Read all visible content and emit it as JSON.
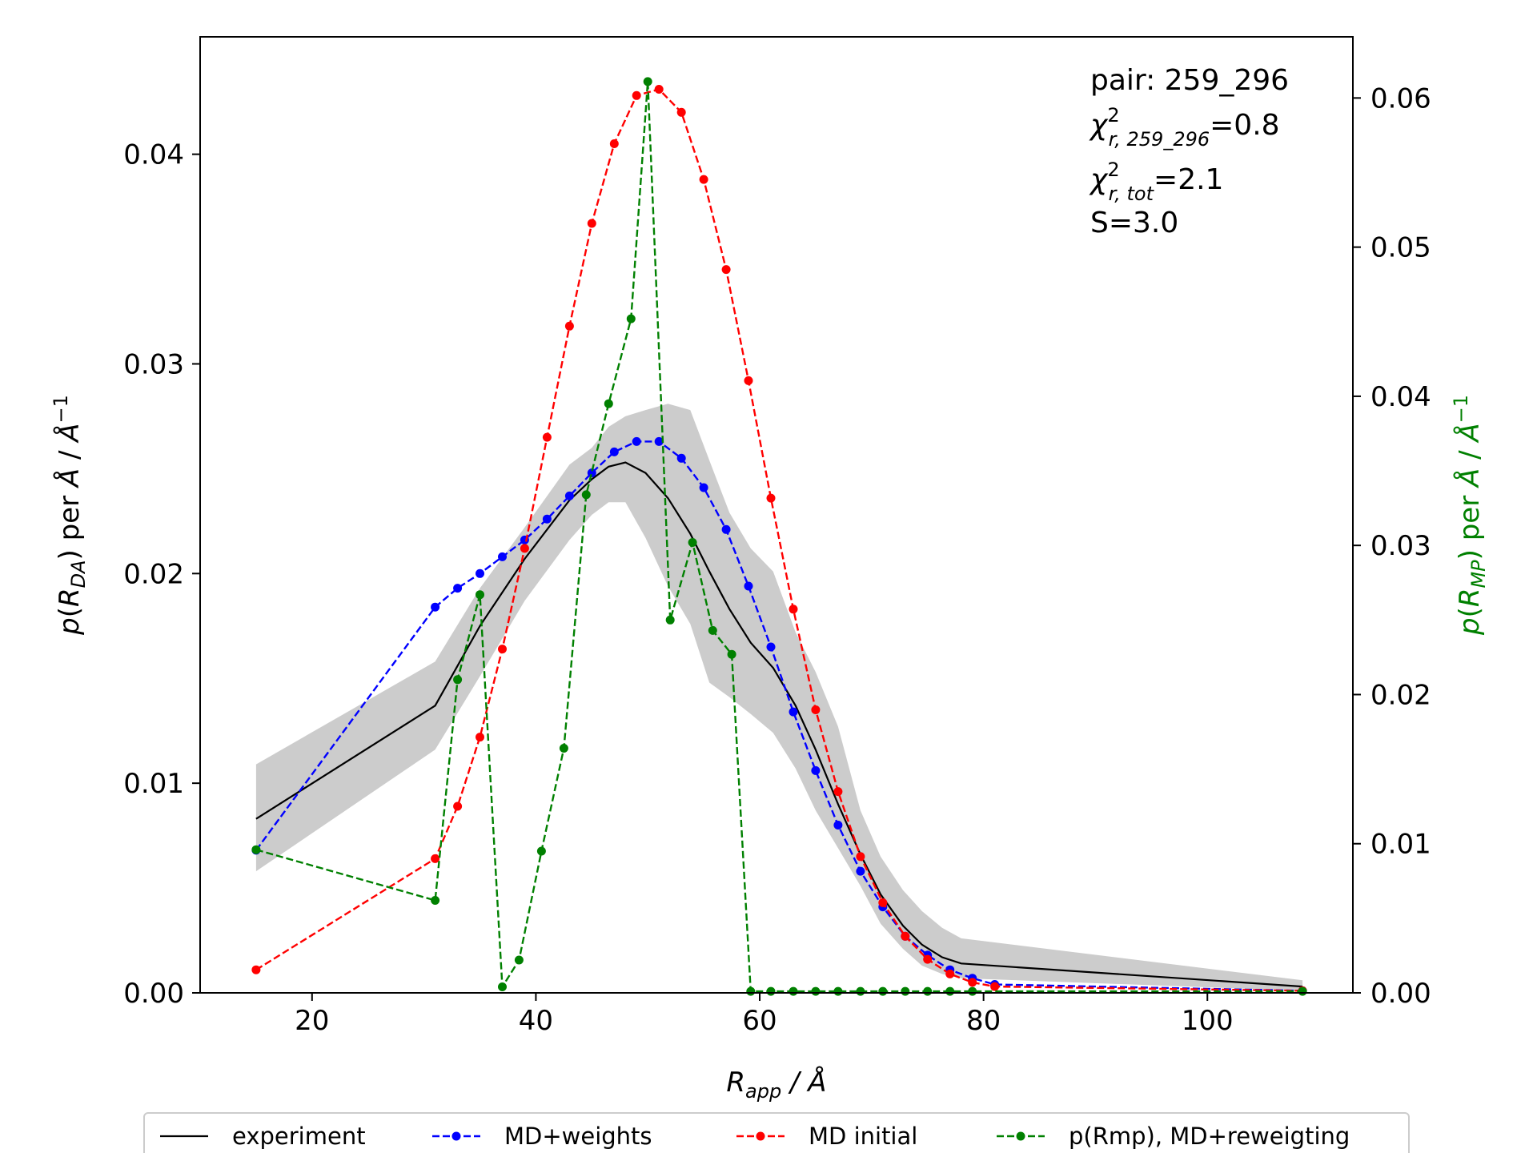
{
  "chart_data": {
    "type": "line",
    "title": "",
    "xlabel": "R_app / Å",
    "ylabel": "p(R_DA) per Å / Å⁻¹",
    "y2label": "p(R_MP) per Å / Å⁻¹",
    "y2label_color": "#008000",
    "xlim": [
      10,
      113
    ],
    "ylim": [
      0,
      0.0456
    ],
    "y2lim": [
      0,
      0.0641
    ],
    "xticks": [
      "20",
      "40",
      "60",
      "80",
      "100"
    ],
    "yticks": [
      "0.00",
      "0.01",
      "0.02",
      "0.03",
      "0.04"
    ],
    "y2ticks": [
      "0.00",
      "0.01",
      "0.02",
      "0.03",
      "0.04",
      "0.05",
      "0.06"
    ],
    "grid": false,
    "legend_position": "below-center",
    "annotation": {
      "pair": "pair: 259_296",
      "chi_pair": "=0.8",
      "chi_pair_sub": "r, 259_296",
      "chi_tot": "=2.1",
      "chi_tot_sub": "r, tot",
      "chi_symbol": "χ",
      "chi_sup": "2",
      "s": "S=3.0"
    },
    "series": [
      {
        "name": "experiment",
        "color": "#000000",
        "style": "solid",
        "axis": "left",
        "x": [
          15,
          31,
          35,
          39,
          43,
          45,
          46.5,
          48,
          49.8,
          51.8,
          53.8,
          55.5,
          57.3,
          59.2,
          61.2,
          63.2,
          65,
          67,
          69,
          70.8,
          72.8,
          74.5,
          76.3,
          78,
          108.5
        ],
        "y": [
          0.0083,
          0.0137,
          0.0175,
          0.0207,
          0.0235,
          0.0245,
          0.0251,
          0.0253,
          0.0248,
          0.0236,
          0.0219,
          0.0201,
          0.0183,
          0.0167,
          0.0155,
          0.0137,
          0.0116,
          0.009,
          0.0066,
          0.0047,
          0.0032,
          0.0023,
          0.0017,
          0.0014,
          0.0003
        ],
        "band_upper": [
          0.0109,
          0.0158,
          0.0193,
          0.0222,
          0.0252,
          0.026,
          0.027,
          0.0275,
          0.0278,
          0.0281,
          0.0278,
          0.0254,
          0.0229,
          0.0212,
          0.0201,
          0.0172,
          0.0153,
          0.0127,
          0.0087,
          0.0065,
          0.0049,
          0.0039,
          0.0031,
          0.0026,
          0.0006
        ],
        "band_lower": [
          0.0058,
          0.0116,
          0.0151,
          0.0187,
          0.0216,
          0.0228,
          0.0234,
          0.0234,
          0.0217,
          0.0194,
          0.0176,
          0.0148,
          0.0141,
          0.0133,
          0.0124,
          0.0107,
          0.0087,
          0.0069,
          0.0051,
          0.0033,
          0.0021,
          0.0013,
          0.0009,
          0.0007,
          0.0001
        ]
      },
      {
        "name": "MD+weights",
        "color": "#0000ff",
        "style": "dashed",
        "axis": "left",
        "x": [
          15,
          31,
          33,
          35,
          37,
          39,
          41,
          43,
          45,
          47,
          49,
          51,
          53,
          55,
          57,
          59,
          61,
          63,
          65,
          67,
          69,
          71,
          73,
          75,
          77,
          79,
          81,
          108.5
        ],
        "y": [
          0.0068,
          0.0184,
          0.0193,
          0.02,
          0.0208,
          0.0216,
          0.0226,
          0.0237,
          0.0248,
          0.0258,
          0.0263,
          0.0263,
          0.0255,
          0.0241,
          0.0221,
          0.0194,
          0.0165,
          0.0134,
          0.0106,
          0.008,
          0.0058,
          0.0041,
          0.0027,
          0.0018,
          0.0011,
          0.0007,
          0.0004,
          0.0001
        ]
      },
      {
        "name": "MD initial",
        "color": "#ff0000",
        "style": "dashed",
        "axis": "left",
        "x": [
          15,
          31,
          33,
          35,
          37,
          39,
          41,
          43,
          45,
          47,
          49,
          51,
          53,
          55,
          57,
          59,
          61,
          63,
          65,
          67,
          69,
          71,
          73,
          75,
          77,
          79,
          81,
          108.5
        ],
        "y": [
          0.0011,
          0.0064,
          0.0089,
          0.0122,
          0.0164,
          0.0212,
          0.0265,
          0.0318,
          0.0367,
          0.0405,
          0.0428,
          0.0431,
          0.042,
          0.0388,
          0.0345,
          0.0292,
          0.0236,
          0.0183,
          0.0135,
          0.0096,
          0.0065,
          0.0043,
          0.0027,
          0.0016,
          0.0009,
          0.0005,
          0.0003,
          0.0001
        ]
      },
      {
        "name": "p(Rmp), MD+reweigting",
        "color": "#008000",
        "style": "dashed",
        "axis": "right",
        "x": [
          15,
          31,
          33,
          35,
          37,
          38.5,
          40.5,
          42.5,
          44.5,
          46.5,
          48.5,
          50,
          52,
          54,
          55.8,
          57.5,
          59.2,
          61,
          63,
          65,
          67,
          69,
          71,
          73,
          75,
          77,
          79,
          108.5
        ],
        "y": [
          0.0096,
          0.0062,
          0.021,
          0.0267,
          0.0004,
          0.0022,
          0.0095,
          0.0164,
          0.0334,
          0.0395,
          0.0452,
          0.0611,
          0.025,
          0.0302,
          0.0243,
          0.0227,
          0.0001,
          0.0001,
          0.0001,
          0.0001,
          0.0001,
          0.0001,
          0.0001,
          0.0001,
          0.0001,
          0.0001,
          0.0001,
          0.0001
        ]
      }
    ]
  }
}
